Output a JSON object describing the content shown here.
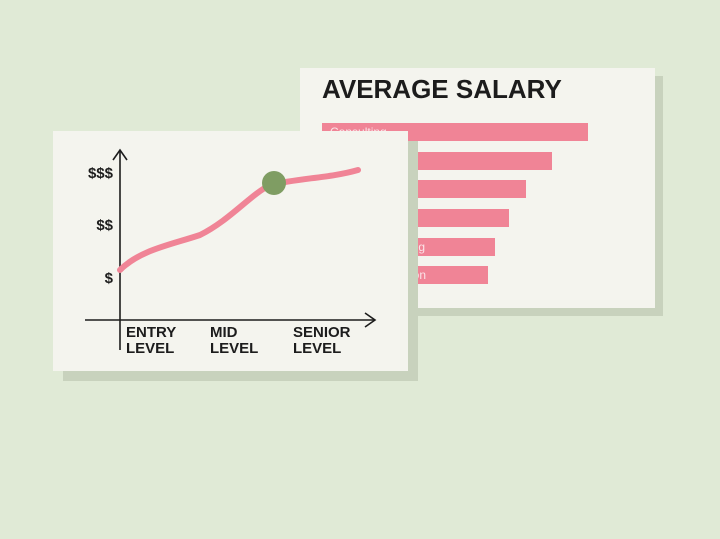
{
  "back_card": {
    "title": "AVERAGE SALARY",
    "bar_labels": [
      "Consulting",
      "ing",
      "ion"
    ]
  },
  "front_card": {
    "y_labels": [
      "$$$",
      "$$",
      "$"
    ],
    "x_labels": [
      [
        "ENTRY",
        "LEVEL"
      ],
      [
        "MID",
        "LEVEL"
      ],
      [
        "SENIOR",
        "LEVEL"
      ]
    ]
  }
}
